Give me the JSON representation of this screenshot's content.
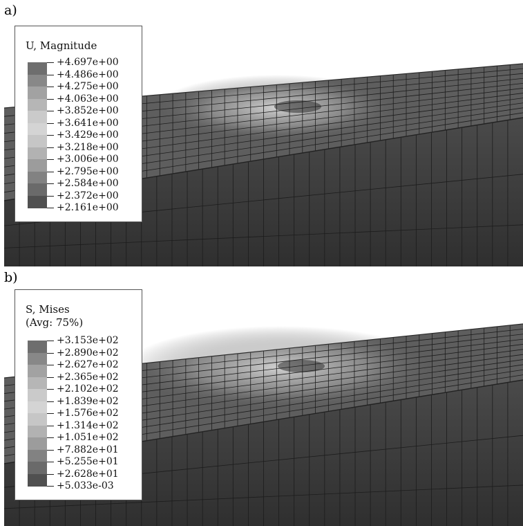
{
  "panels": [
    {
      "label": "a)",
      "legend": {
        "title": "U, Magnitude",
        "subtitle": "",
        "values": [
          "+4.697e+00",
          "+4.486e+00",
          "+4.275e+00",
          "+4.063e+00",
          "+3.852e+00",
          "+3.641e+00",
          "+3.429e+00",
          "+3.218e+00",
          "+3.006e+00",
          "+2.795e+00",
          "+2.584e+00",
          "+2.372e+00",
          "+2.161e+00"
        ],
        "band_colors": [
          "#6e6e6e",
          "#888888",
          "#a2a2a2",
          "#b6b6b6",
          "#cacaca",
          "#d4d4d4",
          "#c6c6c6",
          "#b2b2b2",
          "#9c9c9c",
          "#828282",
          "#6a6a6a",
          "#505050"
        ]
      }
    },
    {
      "label": "b)",
      "legend": {
        "title": "S, Mises",
        "subtitle": "(Avg: 75%)",
        "values": [
          "+3.153e+02",
          "+2.890e+02",
          "+2.627e+02",
          "+2.365e+02",
          "+2.102e+02",
          "+1.839e+02",
          "+1.576e+02",
          "+1.314e+02",
          "+1.051e+02",
          "+7.882e+01",
          "+5.255e+01",
          "+2.628e+01",
          "+5.033e-03"
        ],
        "band_colors": [
          "#6e6e6e",
          "#888888",
          "#a2a2a2",
          "#b6b6b6",
          "#cacaca",
          "#d4d4d4",
          "#c6c6c6",
          "#b2b2b2",
          "#9c9c9c",
          "#828282",
          "#6a6a6a",
          "#505050"
        ]
      }
    }
  ],
  "colors": {
    "mesh_top": "#5e5e5e",
    "mesh_side": "#3f3f3f",
    "grid_line": "#1c1c1c",
    "hotspot": "#d8d8d8"
  }
}
